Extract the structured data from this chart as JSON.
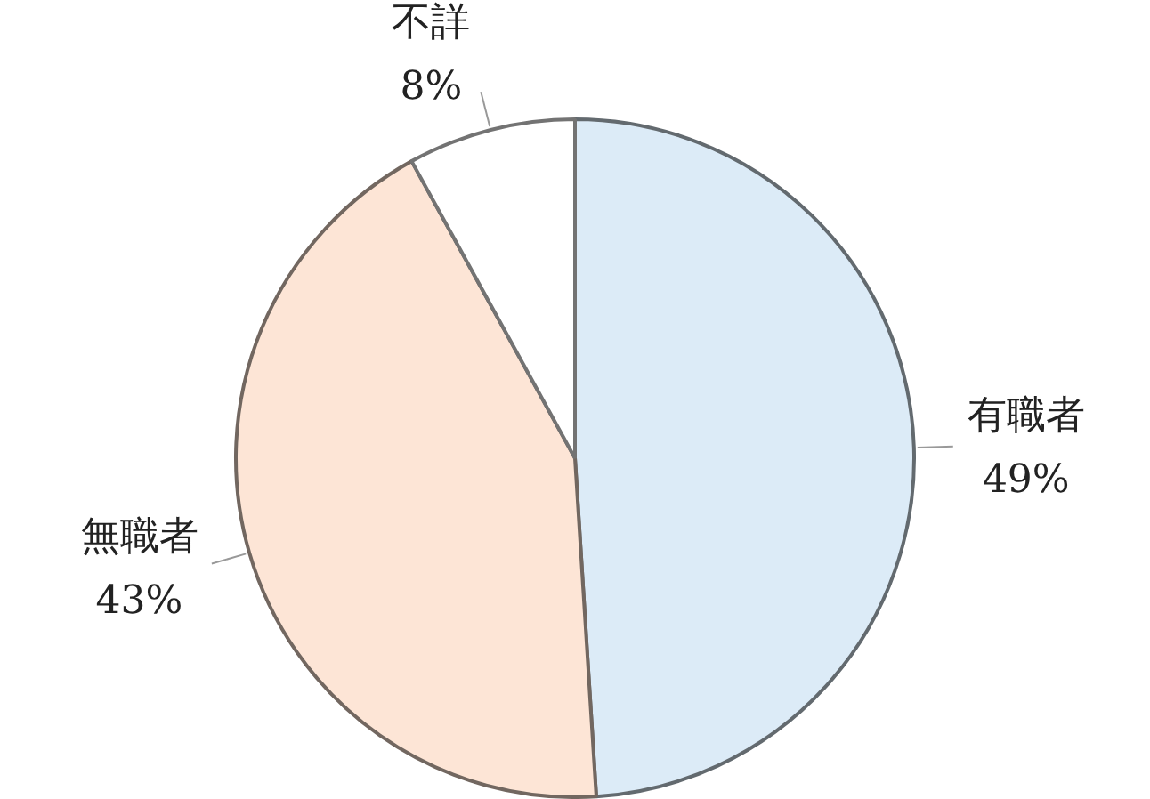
{
  "chart_data": {
    "type": "pie",
    "categories": [
      "有職者",
      "無職者",
      "不詳"
    ],
    "values": [
      49,
      43,
      8
    ],
    "value_labels": [
      "49%",
      "43%",
      "8%"
    ],
    "colors": [
      "#dcebf7",
      "#fde5d6",
      "#ffffff"
    ],
    "legend": false
  }
}
